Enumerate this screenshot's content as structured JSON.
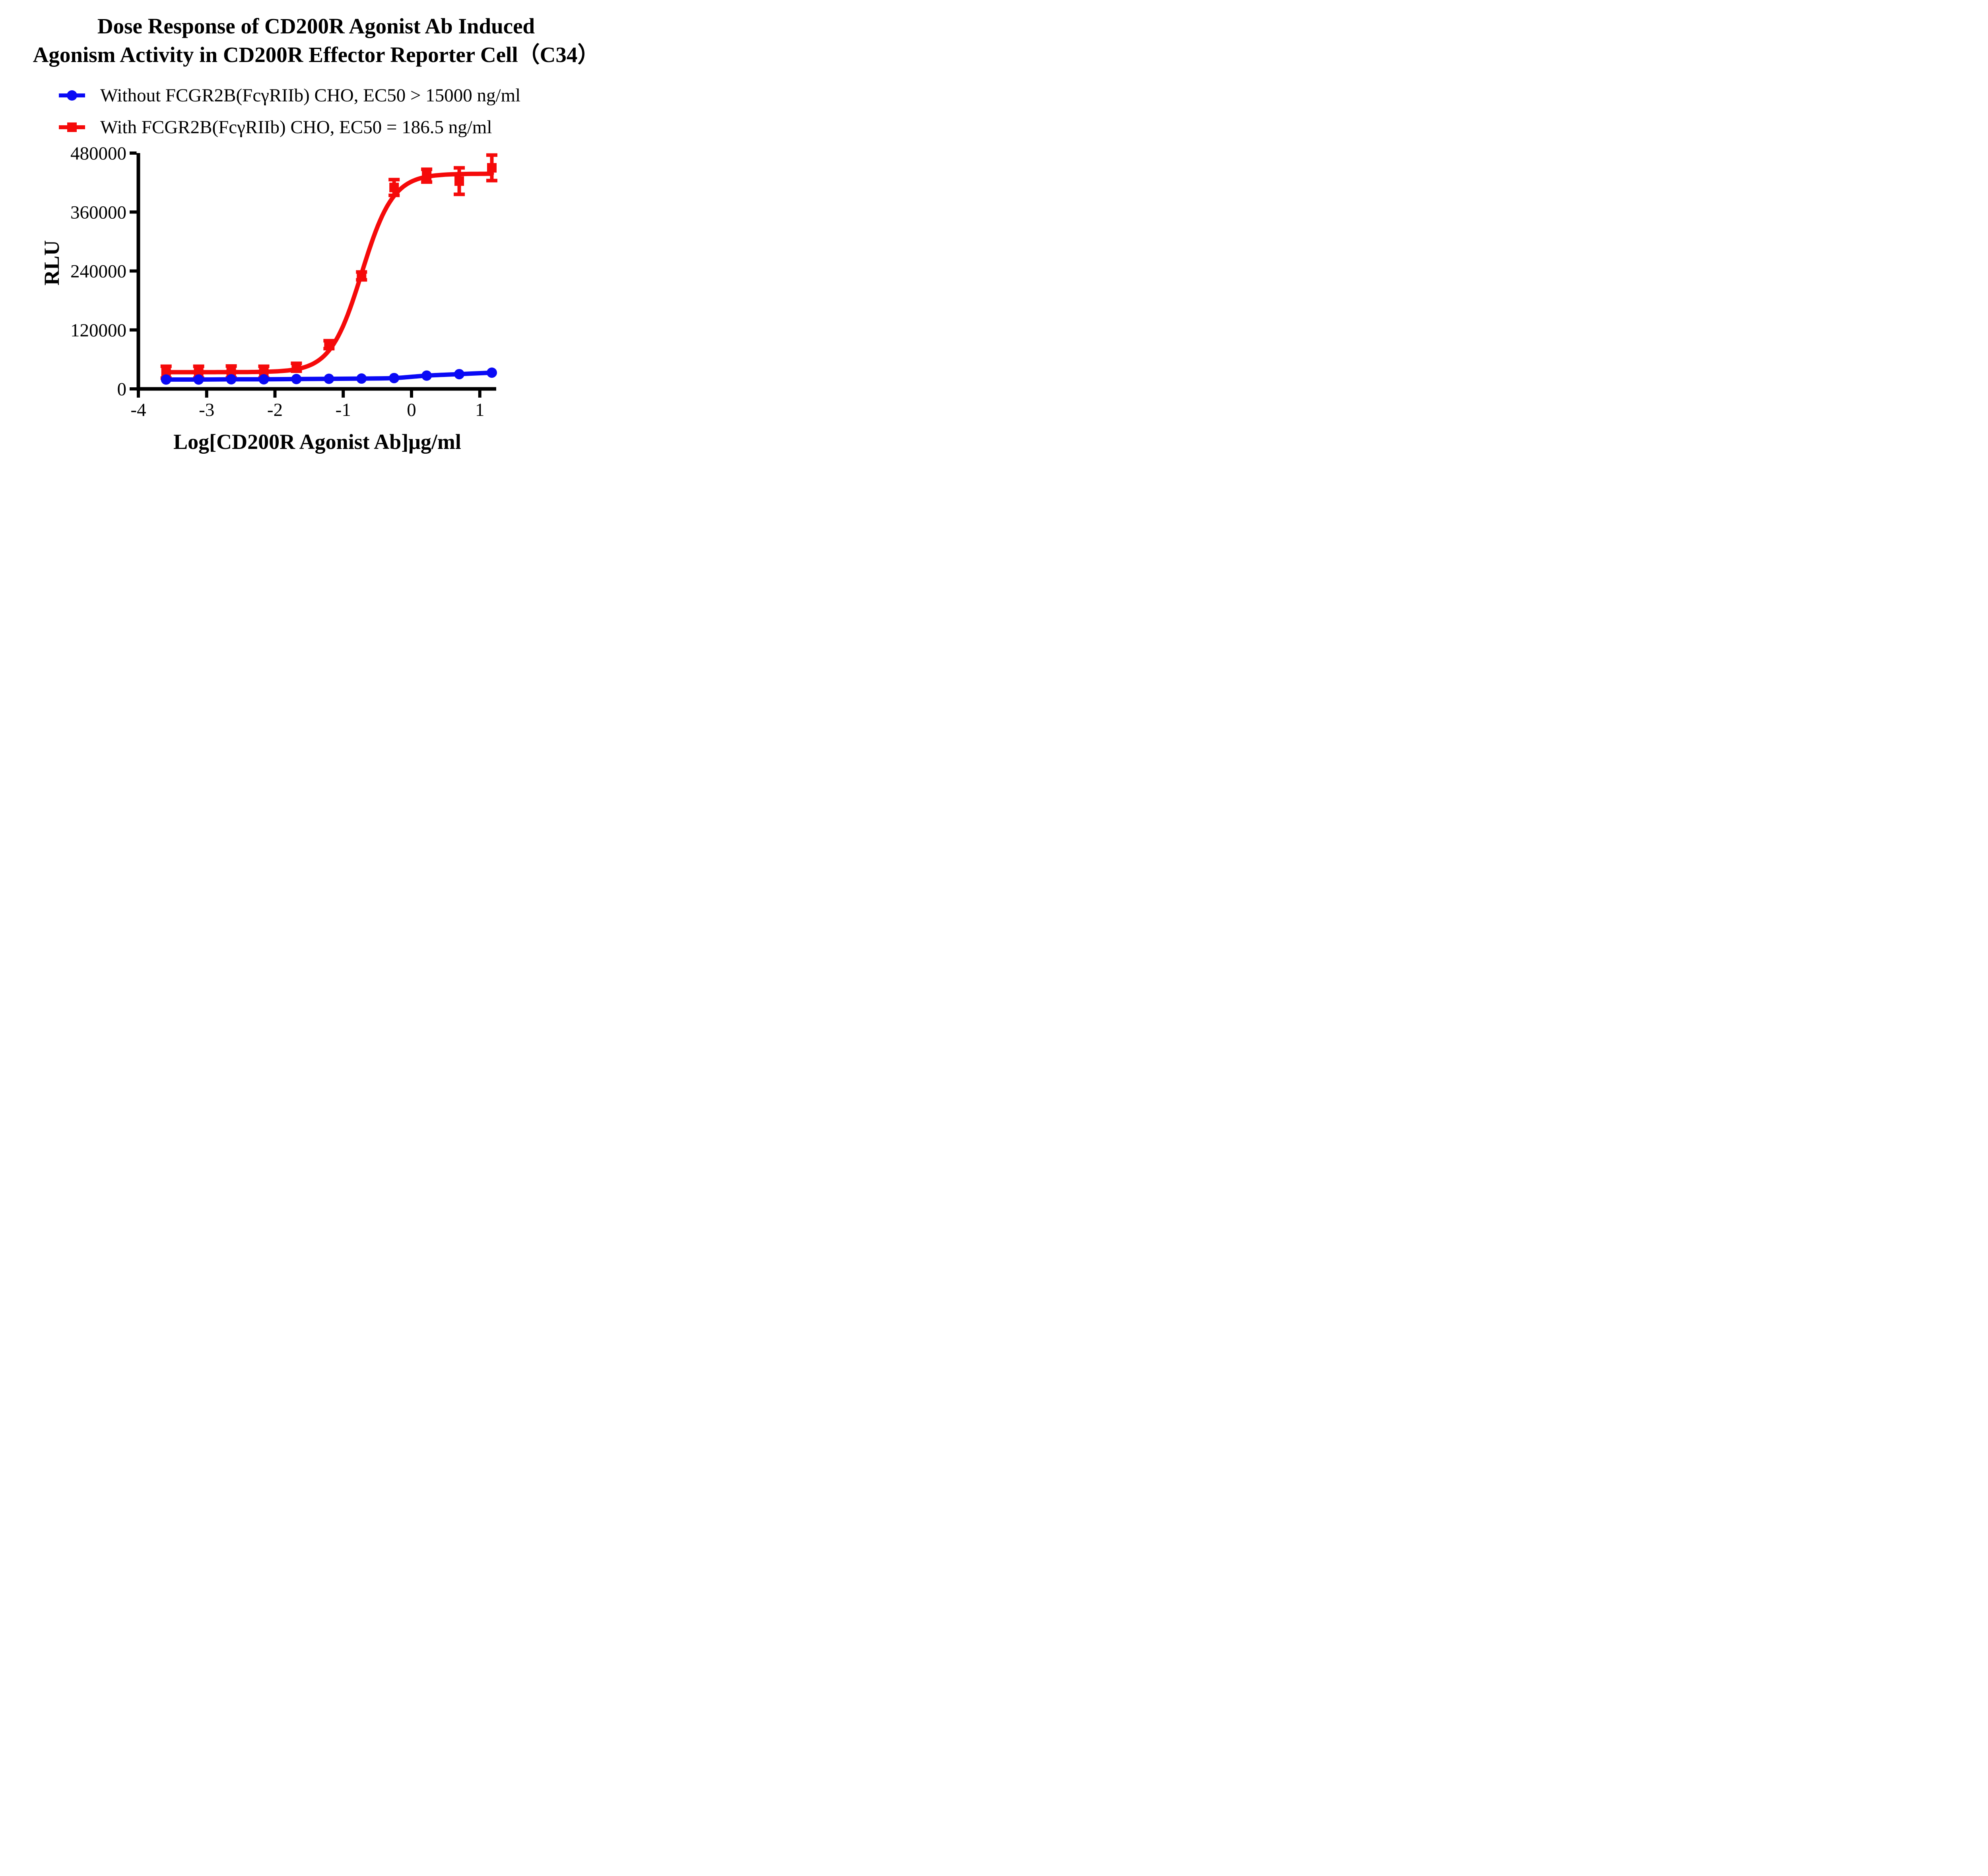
{
  "title": {
    "line1": "Dose Response of CD200R Agonist Ab Induced",
    "line2": "Agonism Activity in CD200R Effector Reporter Cell（C34）"
  },
  "legend": {
    "items": [
      {
        "label": "Without FCGR2B(FcγRIIb) CHO, EC50 > 15000 ng/ml",
        "marker": "circle",
        "color": "#0a0af5"
      },
      {
        "label": "With FCGR2B(FcγRIIb) CHO, EC50 = 186.5 ng/ml",
        "marker": "square",
        "color": "#f50a0a"
      }
    ]
  },
  "axes": {
    "ylabel": "RLU",
    "xlabel": "Log[CD200R Agonist Ab]μg/ml"
  },
  "chart_data": {
    "type": "line",
    "title": "Dose Response of CD200R Agonist Ab Induced Agonism Activity in CD200R Effector Reporter Cell（C34）",
    "xlabel": "Log[CD200R Agonist Ab]μg/ml",
    "ylabel": "RLU",
    "xlim": [
      -4,
      1.3
    ],
    "ylim": [
      0,
      480000
    ],
    "grid": false,
    "legend_position": "top-left",
    "xticks": [
      {
        "v": -4,
        "label": "-4"
      },
      {
        "v": -3,
        "label": "-3"
      },
      {
        "v": -2,
        "label": "-2"
      },
      {
        "v": -1,
        "label": "-1"
      },
      {
        "v": 0,
        "label": "0"
      },
      {
        "v": 1,
        "label": "1"
      }
    ],
    "yticks": [
      {
        "v": 0,
        "label": "0"
      },
      {
        "v": 120000,
        "label": "120000"
      },
      {
        "v": 240000,
        "label": "240000"
      },
      {
        "v": 360000,
        "label": "360000"
      },
      {
        "v": 480000,
        "label": "480000"
      }
    ],
    "x": [
      -3.594,
      -3.117,
      -2.64,
      -2.163,
      -1.686,
      -1.209,
      -0.732,
      -0.255,
      0.222,
      0.699,
      1.176
    ],
    "series": [
      {
        "name": "Without FCGR2B(FcγRIIb) CHO, EC50 > 15000 ng/ml",
        "marker": "circle",
        "color": "#0a0af5",
        "values": [
          19000,
          19000,
          19500,
          19500,
          20000,
          20500,
          21000,
          22000,
          27000,
          30000,
          33000
        ],
        "errors": [
          0,
          0,
          0,
          0,
          0,
          0,
          0,
          0,
          0,
          0,
          0
        ],
        "ec50_text": "EC50 > 15000 ng/ml"
      },
      {
        "name": "With FCGR2B(FcγRIIb) CHO, EC50 = 186.5 ng/ml",
        "marker": "square",
        "color": "#f50a0a",
        "values": [
          34000,
          34000,
          34500,
          34000,
          44000,
          90000,
          230000,
          410000,
          434000,
          423000,
          450000
        ],
        "errors": [
          12000,
          12000,
          12000,
          12000,
          8000,
          8000,
          8000,
          16000,
          13000,
          27000,
          26000
        ],
        "ec50_text": "EC50 = 186.5 ng/ml",
        "fit_4pl": {
          "bottom": 34000,
          "top": 438000,
          "logEC50": -0.729,
          "hill": 1.9
        }
      }
    ]
  }
}
